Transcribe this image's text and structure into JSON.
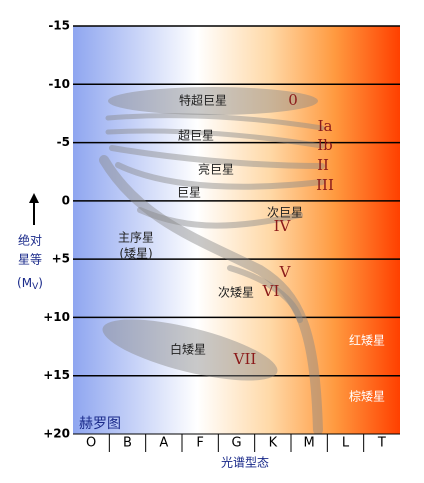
{
  "title": "赫罗图",
  "axis": {
    "y_label": [
      "绝对",
      "星等"
    ],
    "y_unit_main": "M",
    "y_unit_sub": "V",
    "y_ticks": [
      "-15",
      "-10",
      "-5",
      "0",
      "+5",
      "+10",
      "+15",
      "+20"
    ],
    "x_label": "光谱型态",
    "x_categories": [
      "O",
      "B",
      "A",
      "F",
      "G",
      "K",
      "M",
      "L",
      "T"
    ]
  },
  "regions": {
    "hypergiants": {
      "label": "特超巨星",
      "class": "0"
    },
    "supergiants": {
      "label": "超巨星",
      "classes": [
        "Ia",
        "Ib"
      ]
    },
    "bright_giants": {
      "label": "亮巨星",
      "class": "II"
    },
    "giants": {
      "label": "巨星",
      "class": "III"
    },
    "subgiants": {
      "label": "次巨星",
      "class": "IV"
    },
    "main_sequence": {
      "label": "主序星",
      "sublabel": "(矮星)",
      "class": "V"
    },
    "subdwarfs": {
      "label": "次矮星",
      "class": "VI"
    },
    "white_dwarfs": {
      "label": "白矮星",
      "class": "VII"
    },
    "red_dwarfs": {
      "label": "红矮星"
    },
    "brown_dwarfs": {
      "label": "棕矮星"
    }
  }
}
